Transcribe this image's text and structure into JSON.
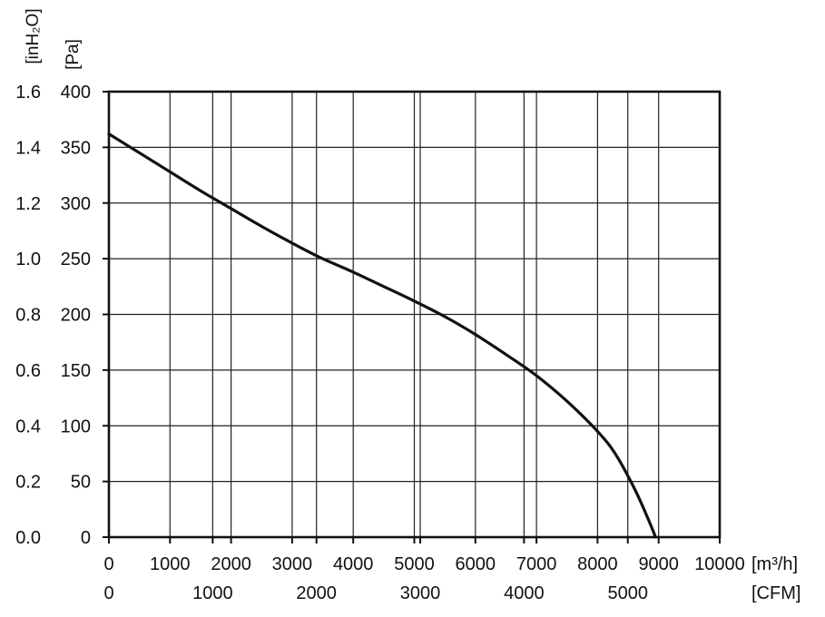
{
  "chart_data": {
    "type": "line",
    "title": "",
    "y_left_unit": "[inH₂O]",
    "y_right_unit": "[Pa]",
    "x_unit_primary": "[m³/h]",
    "x_unit_secondary": "[CFM]",
    "y_pa_range": [
      0,
      400
    ],
    "y_pa_ticks": [
      "0",
      "50",
      "100",
      "150",
      "200",
      "250",
      "300",
      "350",
      "400"
    ],
    "y_inh2o_ticks": [
      "0.0",
      "0.2",
      "0.4",
      "0.6",
      "0.8",
      "1.0",
      "1.2",
      "1.4",
      "1.6"
    ],
    "x_m3h_range": [
      0,
      10000
    ],
    "x_m3h_ticks": [
      "0",
      "1000",
      "2000",
      "3000",
      "4000",
      "5000",
      "6000",
      "7000",
      "8000",
      "9000",
      "10000"
    ],
    "x_cfm_ticks": [
      "0",
      "1000",
      "2000",
      "3000",
      "4000",
      "5000"
    ],
    "grid": true,
    "series": [
      {
        "x": [
          0,
          500,
          1000,
          1500,
          2000,
          2500,
          3000,
          3500,
          4000,
          4500,
          5000,
          5500,
          6000,
          6500,
          7000,
          7500,
          8000,
          8300,
          8600,
          8800,
          8950
        ],
        "y": [
          362,
          345,
          328,
          311,
          295,
          279,
          264,
          250,
          238,
          225,
          212,
          198,
          182,
          164,
          145,
          122,
          95,
          74,
          44,
          20,
          0
        ]
      }
    ]
  }
}
